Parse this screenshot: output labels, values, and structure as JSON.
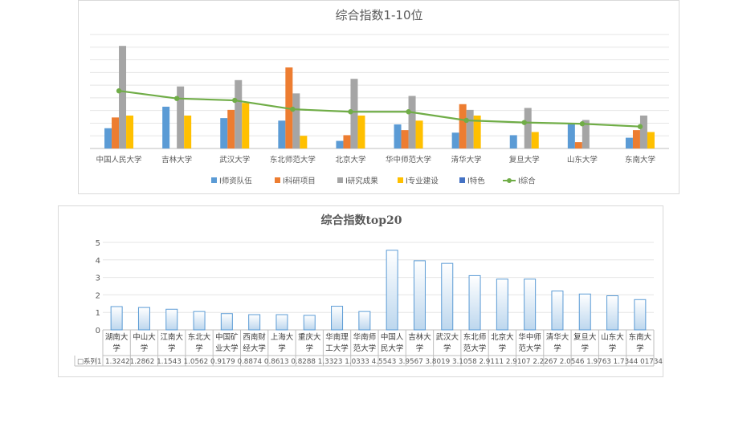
{
  "chart_data": [
    {
      "type": "bar",
      "title": "综合指数1-10位",
      "categories": [
        "中国人民大学",
        "吉林大学",
        "武汉大学",
        "东北师范大学",
        "北京大学",
        "华中师范大学",
        "清华大学",
        "复旦大学",
        "山东大学",
        "东南大学"
      ],
      "ylim": [
        0,
        9
      ],
      "grid": true,
      "legend_position": "bottom",
      "series": [
        {
          "name": "I师资队伍",
          "kind": "bar",
          "color": "#5b9bd5",
          "values": [
            1.6,
            3.3,
            2.4,
            2.2,
            0.6,
            1.9,
            1.25,
            1.05,
            1.9,
            0.85
          ]
        },
        {
          "name": "I科研项目",
          "kind": "bar",
          "color": "#ed7d31",
          "values": [
            2.45,
            0,
            3.05,
            6.4,
            1.05,
            1.45,
            3.5,
            0,
            0.5,
            1.45
          ]
        },
        {
          "name": "I研究成果",
          "kind": "bar",
          "color": "#a5a5a5",
          "values": [
            8.1,
            4.9,
            5.4,
            4.35,
            5.5,
            4.15,
            3.05,
            3.2,
            2.25,
            2.6
          ]
        },
        {
          "name": "I专业建设",
          "kind": "bar",
          "color": "#ffc000",
          "values": [
            2.6,
            2.6,
            3.6,
            1.0,
            2.6,
            2.2,
            2.6,
            1.3,
            0,
            1.3
          ]
        },
        {
          "name": "I特色",
          "kind": "bar",
          "color": "#4472c4",
          "values": [
            0,
            0,
            0,
            0,
            0,
            0,
            0,
            0,
            0,
            0
          ]
        },
        {
          "name": "I综合",
          "kind": "line",
          "color": "#70ad47",
          "values": [
            4.55,
            3.95,
            3.8,
            3.1,
            2.9,
            2.9,
            2.22,
            2.05,
            1.95,
            1.73
          ]
        }
      ]
    },
    {
      "type": "bar",
      "title": "综合指数top20",
      "categories": [
        "湖南大学",
        "中山大学",
        "江南大学",
        "东北大学",
        "中国矿业大学",
        "西南财经大学",
        "上海大学",
        "重庆大学",
        "华南理工大学",
        "华南师范大学",
        "中国人民大学",
        "吉林大学",
        "武汉大学",
        "东北师范大学",
        "北京大学",
        "华中师范大学",
        "清华大学",
        "复旦大学",
        "山东大学",
        "东南大学"
      ],
      "ylim": [
        0,
        5
      ],
      "yticks": [
        "0",
        "1",
        "2",
        "3",
        "4",
        "5"
      ],
      "grid": true,
      "series": [
        {
          "name": "系列1",
          "color": "#5b9bd5",
          "values": [
            1.33,
            1.28,
            1.18,
            1.05,
            0.93,
            0.87,
            0.87,
            0.83,
            1.35,
            1.05,
            4.55,
            3.95,
            3.8,
            3.1,
            2.9,
            2.9,
            2.22,
            2.05,
            1.95,
            1.73
          ]
        }
      ],
      "table_legend": "□系列1",
      "table_row_text": "1.32421.2862 1.1543 1.0562 0.9179 0.8874 0.8613 0.8288 1.3323 1.0333 4.5543 3.9567 3.8019 3.1058 2.9111 2.9107 2.2267 2.0546 1.9763 1.7344 01734"
    }
  ]
}
